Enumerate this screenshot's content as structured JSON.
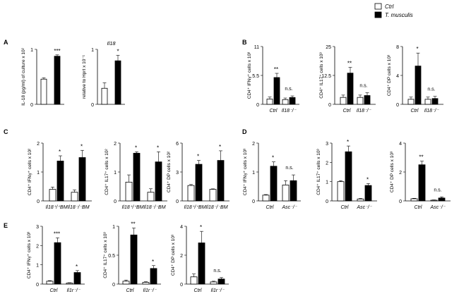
{
  "legend": {
    "position": "top-right",
    "entries": [
      {
        "label": "Ctrl",
        "fill": "#ffffff"
      },
      {
        "label": "T. musculis",
        "fill": "#000000"
      }
    ]
  },
  "colors": {
    "ctrl": "#ffffff",
    "treated": "#000000",
    "stroke": "#000000"
  },
  "chart_data": [
    {
      "panel": "A",
      "type": "bar",
      "title": "",
      "ylabel": "IL-18 (pg/ml) of culture x 10²",
      "yticks": [
        "1",
        "0"
      ],
      "ylim": [
        0,
        1.2
      ],
      "categories": [
        ""
      ],
      "series": [
        {
          "name": "Ctrl",
          "values": [
            0.55
          ],
          "err": [
            0.03
          ]
        },
        {
          "name": "T. musculis",
          "values": [
            1.05
          ],
          "err": [
            0.03
          ]
        }
      ],
      "annotations": [
        "***"
      ],
      "group_labels": []
    },
    {
      "panel": "A",
      "type": "bar",
      "title": "Il18",
      "ylabel": "relative  to  Hprt x 10⁻¹",
      "yticks": [
        "1",
        "0"
      ],
      "ylim": [
        0,
        1.2
      ],
      "categories": [
        ""
      ],
      "series": [
        {
          "name": "Ctrl",
          "values": [
            0.35
          ],
          "err": [
            0.12
          ]
        },
        {
          "name": "T. musculis",
          "values": [
            0.95
          ],
          "err": [
            0.12
          ]
        }
      ],
      "annotations": [
        "*"
      ],
      "group_labels": []
    },
    {
      "panel": "B",
      "type": "bar",
      "title": "",
      "ylabel": "CD4⁺ IFNγ⁺ cells x 10³",
      "yticks": [
        "11",
        "5.5",
        "0"
      ],
      "ylim": [
        0,
        11
      ],
      "categories": [
        "Ctrl",
        "Il18⁻/⁻"
      ],
      "series": [
        {
          "name": "Ctrl",
          "values": [
            1.0,
            0.9
          ],
          "err": [
            0.4,
            0.3
          ]
        },
        {
          "name": "T. musculis",
          "values": [
            5.1,
            1.3
          ],
          "err": [
            0.8,
            0.3
          ]
        }
      ],
      "annotations": [
        "**",
        "n.s."
      ],
      "group_labels": [
        "Ctrl",
        "Il18⁻/⁻"
      ]
    },
    {
      "panel": "B",
      "type": "bar",
      "title": "",
      "ylabel": "CD4⁺ IL17⁺ cells x 10³",
      "yticks": [
        "25",
        "12.5",
        "0"
      ],
      "ylim": [
        0,
        25
      ],
      "categories": [
        "Ctrl",
        "Il18⁻/⁻"
      ],
      "series": [
        {
          "name": "Ctrl",
          "values": [
            3.0,
            3.0
          ],
          "err": [
            1.0,
            1.0
          ]
        },
        {
          "name": "T. musculis",
          "values": [
            13.5,
            3.8
          ],
          "err": [
            2.5,
            1.2
          ]
        }
      ],
      "annotations": [
        "**",
        "n.s."
      ],
      "group_labels": [
        "Ctrl",
        "Il18⁻/⁻"
      ]
    },
    {
      "panel": "B",
      "type": "bar",
      "title": "",
      "ylabel": "CD4⁺ DP  cells x 10³",
      "yticks": [
        "8",
        "4",
        "0"
      ],
      "ylim": [
        0,
        8
      ],
      "categories": [
        "Ctrl",
        "Il18⁻/⁻"
      ],
      "series": [
        {
          "name": "Ctrl",
          "values": [
            0.7,
            0.7
          ],
          "err": [
            0.3,
            0.3
          ]
        },
        {
          "name": "T. musculis",
          "values": [
            5.3,
            0.8
          ],
          "err": [
            1.8,
            0.3
          ]
        }
      ],
      "annotations": [
        "*",
        "n.s."
      ],
      "group_labels": [
        "Ctrl",
        "Il18⁻/⁻"
      ]
    },
    {
      "panel": "C",
      "type": "bar",
      "title": "",
      "ylabel": "CD4⁺ IFNγ⁺ cells x 10²",
      "yticks": [
        "2",
        "1",
        "0"
      ],
      "ylim": [
        0,
        2
      ],
      "categories": [
        "Il18⁺/⁺BM",
        "Il18⁻/⁻BM"
      ],
      "series": [
        {
          "name": "Ctrl",
          "values": [
            0.4,
            0.3
          ],
          "err": [
            0.08,
            0.08
          ]
        },
        {
          "name": "T. musculis",
          "values": [
            1.38,
            1.5
          ],
          "err": [
            0.18,
            0.25
          ]
        }
      ],
      "annotations": [
        "*",
        "*"
      ],
      "group_labels": [
        "Il18⁺/⁺BM",
        "Il18⁻/⁻BM"
      ]
    },
    {
      "panel": "C",
      "type": "bar",
      "title": "",
      "ylabel": "CD4⁺ IL17⁺ cells x 10²",
      "yticks": [
        "2",
        "1",
        "0"
      ],
      "ylim": [
        0,
        2
      ],
      "categories": [
        "Il18⁺/⁺BM",
        "Il18⁻/⁻BM"
      ],
      "series": [
        {
          "name": "Ctrl",
          "values": [
            0.65,
            0.3
          ],
          "err": [
            0.25,
            0.12
          ]
        },
        {
          "name": "T. musculis",
          "values": [
            1.65,
            1.35
          ],
          "err": [
            0.05,
            0.35
          ]
        }
      ],
      "annotations": [
        "*",
        "*"
      ],
      "group_labels": [
        "Il18⁺/⁺BM",
        "Il18⁻/⁻BM"
      ]
    },
    {
      "panel": "C",
      "type": "bar",
      "title": "",
      "ylabel": "CD4⁺ DP  cells x 10²",
      "yticks": [
        "6",
        "3",
        "0"
      ],
      "ylim": [
        0,
        6
      ],
      "categories": [
        "Il18⁺/⁺BM",
        "Il18⁻/⁻BM"
      ],
      "series": [
        {
          "name": "Ctrl",
          "values": [
            1.6,
            1.2
          ],
          "err": [
            0.1,
            0.05
          ]
        },
        {
          "name": "T. musculis",
          "values": [
            3.8,
            4.2
          ],
          "err": [
            0.4,
            1.0
          ]
        }
      ],
      "annotations": [
        "*",
        "*"
      ],
      "group_labels": [
        "Il18⁺/⁺BM",
        "Il18⁻/⁻BM"
      ]
    },
    {
      "panel": "D",
      "type": "bar",
      "title": "",
      "ylabel": "CD4⁺ IFNγ⁺ cells x 10³",
      "yticks": [
        "2",
        "1",
        "0"
      ],
      "ylim": [
        0,
        2
      ],
      "categories": [
        "Ctrl",
        "Asc⁻/⁻"
      ],
      "series": [
        {
          "name": "Ctrl",
          "values": [
            0.2,
            0.55
          ],
          "err": [
            0.02,
            0.15
          ]
        },
        {
          "name": "T. musculis",
          "values": [
            1.2,
            0.7
          ],
          "err": [
            0.15,
            0.2
          ]
        }
      ],
      "annotations": [
        "*",
        "n.s."
      ],
      "group_labels": [
        "Ctrl",
        "Asc⁻/⁻"
      ]
    },
    {
      "panel": "D",
      "type": "bar",
      "title": "",
      "ylabel": "CD4⁺ IL17⁺ cells x 10³",
      "yticks": [
        "3",
        "2",
        "1",
        "0"
      ],
      "ylim": [
        0,
        3
      ],
      "categories": [
        "Ctrl",
        "Asc⁻/⁻"
      ],
      "series": [
        {
          "name": "Ctrl",
          "values": [
            1.0,
            0.1
          ],
          "err": [
            0.05,
            0.03
          ]
        },
        {
          "name": "T. musculis",
          "values": [
            2.55,
            0.8
          ],
          "err": [
            0.3,
            0.1
          ]
        }
      ],
      "annotations": [
        "*",
        "*"
      ],
      "group_labels": [
        "Ctrl",
        "Asc⁻/⁻"
      ]
    },
    {
      "panel": "D",
      "type": "bar",
      "title": "",
      "ylabel": "CD4⁺ DP  cells x 10³",
      "yticks": [
        "4",
        "2",
        "0"
      ],
      "ylim": [
        0,
        4
      ],
      "categories": [
        "Ctrl",
        "Asc⁻/⁻"
      ],
      "series": [
        {
          "name": "Ctrl",
          "values": [
            0.15,
            0.05
          ],
          "err": [
            0.03,
            0.02
          ]
        },
        {
          "name": "T. musculis",
          "values": [
            2.5,
            0.2
          ],
          "err": [
            0.25,
            0.08
          ]
        }
      ],
      "annotations": [
        "**",
        "n.s."
      ],
      "group_labels": [
        "Ctrl",
        "Asc⁻/⁻"
      ]
    },
    {
      "panel": "E",
      "type": "bar",
      "title": "",
      "ylabel": "CD4⁺ IFNγ⁺ cells x 10³",
      "yticks": [
        "3",
        "2",
        "1",
        "0"
      ],
      "ylim": [
        0,
        3
      ],
      "categories": [
        "Ctrl",
        "Il1r⁻/⁻"
      ],
      "series": [
        {
          "name": "Ctrl",
          "values": [
            0.15,
            0.05
          ],
          "err": [
            0.03,
            0.02
          ]
        },
        {
          "name": "T. musculis",
          "values": [
            2.15,
            0.6
          ],
          "err": [
            0.25,
            0.1
          ]
        }
      ],
      "annotations": [
        "***",
        "*"
      ],
      "group_labels": [
        "Ctrl",
        "Il1r⁻/⁻"
      ]
    },
    {
      "panel": "E",
      "type": "bar",
      "title": "",
      "ylabel": "CD4⁺ IL17⁺ cells x 10³",
      "yticks": [
        "1",
        "0.5",
        "0"
      ],
      "ylim": [
        0,
        1
      ],
      "categories": [
        "Ctrl",
        "Il1r⁻/⁻"
      ],
      "series": [
        {
          "name": "Ctrl",
          "values": [
            0.05,
            0.03
          ],
          "err": [
            0.02,
            0.01
          ]
        },
        {
          "name": "T. musculis",
          "values": [
            0.85,
            0.27
          ],
          "err": [
            0.12,
            0.05
          ]
        }
      ],
      "annotations": [
        "**",
        "*"
      ],
      "group_labels": [
        "Ctrl",
        "Il1r⁻/⁻"
      ]
    },
    {
      "panel": "E",
      "type": "bar",
      "title": "",
      "ylabel": "CD4⁺ DP  cells x 10³",
      "yticks": [
        "4",
        "2",
        "0"
      ],
      "ylim": [
        0,
        4
      ],
      "categories": [
        "Ctrl",
        "Il1r⁻/⁻"
      ],
      "series": [
        {
          "name": "Ctrl",
          "values": [
            0.5,
            0.15
          ],
          "err": [
            0.2,
            0.05
          ]
        },
        {
          "name": "T. musculis",
          "values": [
            2.85,
            0.35
          ],
          "err": [
            0.8,
            0.1
          ]
        }
      ],
      "annotations": [
        "*",
        "n.s."
      ],
      "group_labels": [
        "Ctrl",
        "Il1r⁻/⁻"
      ]
    }
  ]
}
